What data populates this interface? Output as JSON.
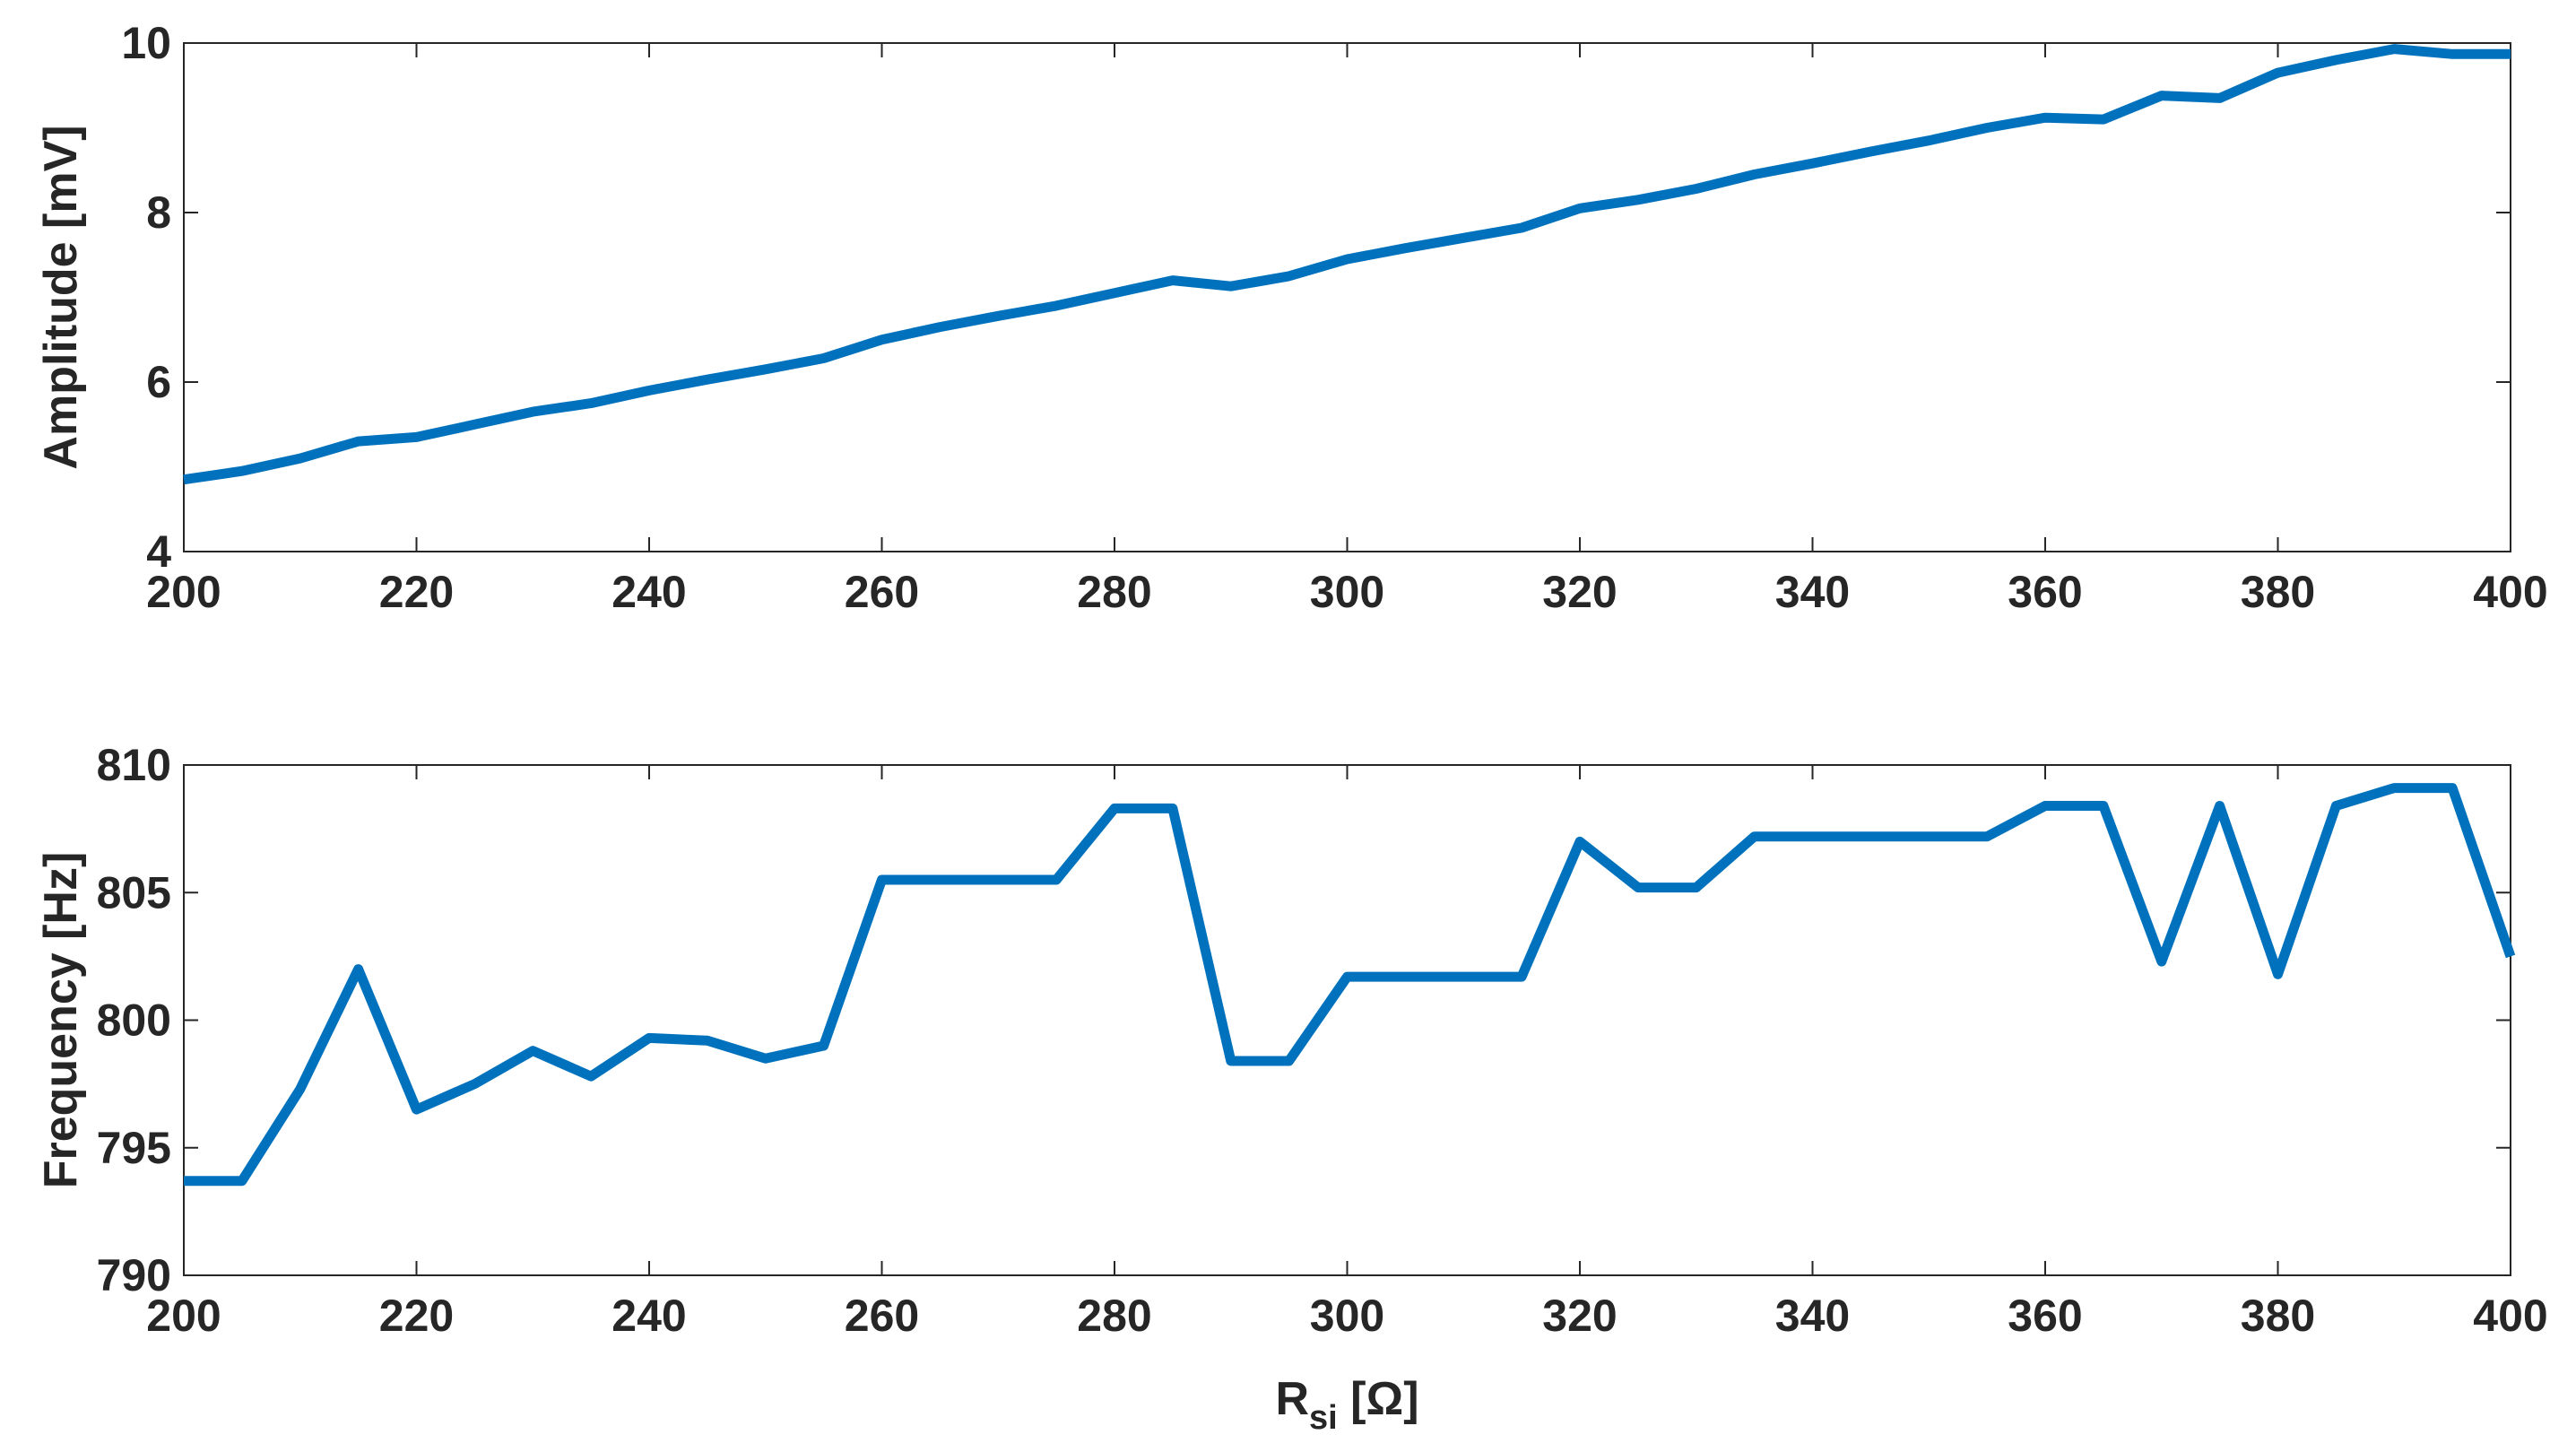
{
  "chart_data": [
    {
      "type": "line",
      "ylabel": "Amplitude [mV]",
      "xlabel": "",
      "xlim": [
        200,
        400
      ],
      "ylim": [
        4,
        10
      ],
      "xticks": [
        "200",
        "220",
        "240",
        "260",
        "280",
        "300",
        "320",
        "340",
        "360",
        "380",
        "400"
      ],
      "yticks": [
        "4",
        "6",
        "8",
        "10"
      ],
      "line_color": "#0072BD",
      "grid": false,
      "series": [
        {
          "x": [
            200,
            205,
            210,
            215,
            220,
            225,
            230,
            235,
            240,
            245,
            250,
            255,
            260,
            265,
            270,
            275,
            280,
            285,
            290,
            295,
            300,
            305,
            310,
            315,
            320,
            325,
            330,
            335,
            340,
            345,
            350,
            355,
            360,
            365,
            370,
            375,
            380,
            385,
            390,
            395,
            400
          ],
          "values": [
            4.85,
            4.95,
            5.1,
            5.3,
            5.35,
            5.5,
            5.65,
            5.75,
            5.9,
            6.03,
            6.15,
            6.28,
            6.5,
            6.65,
            6.78,
            6.9,
            7.05,
            7.2,
            7.13,
            7.25,
            7.45,
            7.58,
            7.7,
            7.82,
            8.05,
            8.15,
            8.28,
            8.45,
            8.58,
            8.72,
            8.85,
            9.0,
            9.12,
            9.1,
            9.38,
            9.35,
            9.65,
            9.8,
            9.93,
            9.87,
            9.87
          ]
        }
      ]
    },
    {
      "type": "line",
      "ylabel": "Frequency [Hz]",
      "xlabel_main": "R",
      "xlabel_sub": "si",
      "xlabel_unit": " [Ω]",
      "xlim": [
        200,
        400
      ],
      "ylim": [
        790,
        810
      ],
      "xticks": [
        "200",
        "220",
        "240",
        "260",
        "280",
        "300",
        "320",
        "340",
        "360",
        "380",
        "400"
      ],
      "yticks": [
        "790",
        "795",
        "800",
        "805",
        "810"
      ],
      "line_color": "#0072BD",
      "grid": false,
      "series": [
        {
          "x": [
            200,
            205,
            210,
            215,
            220,
            225,
            230,
            235,
            240,
            245,
            250,
            255,
            260,
            265,
            270,
            275,
            280,
            285,
            290,
            295,
            300,
            305,
            310,
            315,
            320,
            325,
            330,
            335,
            340,
            345,
            350,
            355,
            360,
            365,
            370,
            375,
            380,
            385,
            390,
            395,
            400
          ],
          "values": [
            793.7,
            793.7,
            797.3,
            802.0,
            796.5,
            797.5,
            798.8,
            797.8,
            799.3,
            799.2,
            798.5,
            799.0,
            805.5,
            805.5,
            805.5,
            805.5,
            808.3,
            808.3,
            798.4,
            798.4,
            801.7,
            801.7,
            801.7,
            801.7,
            807.0,
            805.2,
            805.2,
            807.2,
            807.2,
            807.2,
            807.2,
            807.2,
            808.4,
            808.4,
            802.3,
            808.4,
            801.8,
            808.4,
            809.1,
            809.1,
            802.5
          ]
        }
      ]
    }
  ]
}
